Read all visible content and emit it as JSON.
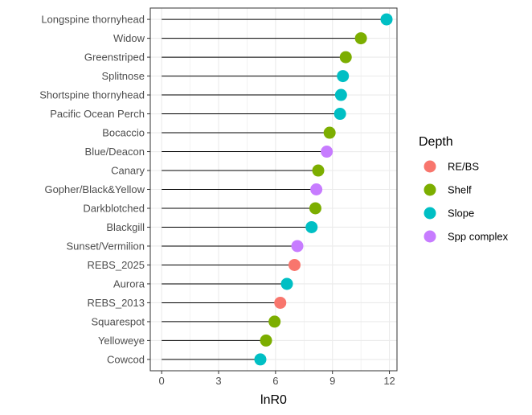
{
  "chart_data": {
    "type": "scatter",
    "subtype": "lollipop",
    "title": "",
    "xlabel": "lnR0",
    "ylabel": "",
    "xlim": [
      -0.6,
      12.4
    ],
    "x_ticks": [
      0,
      3,
      6,
      9,
      12
    ],
    "grid": true,
    "legend": {
      "title": "Depth",
      "position": "right",
      "entries": [
        {
          "name": "RE/BS",
          "color": "#F8766D"
        },
        {
          "name": "Shelf",
          "color": "#7CAE00"
        },
        {
          "name": "Slope",
          "color": "#00BFC4"
        },
        {
          "name": "Spp complex",
          "color": "#C77CFF"
        }
      ]
    },
    "points": [
      {
        "species": "Longspine thornyhead",
        "value": 11.85,
        "depth": "Slope"
      },
      {
        "species": "Widow",
        "value": 10.5,
        "depth": "Shelf"
      },
      {
        "species": "Greenstriped",
        "value": 9.7,
        "depth": "Shelf"
      },
      {
        "species": "Splitnose",
        "value": 9.55,
        "depth": "Slope"
      },
      {
        "species": "Shortspine thornyhead",
        "value": 9.45,
        "depth": "Slope"
      },
      {
        "species": "Pacific Ocean Perch",
        "value": 9.4,
        "depth": "Slope"
      },
      {
        "species": "Bocaccio",
        "value": 8.85,
        "depth": "Shelf"
      },
      {
        "species": "Blue/Deacon",
        "value": 8.7,
        "depth": "Spp complex"
      },
      {
        "species": "Canary",
        "value": 8.25,
        "depth": "Shelf"
      },
      {
        "species": "Gopher/Black&Yellow",
        "value": 8.15,
        "depth": "Spp complex"
      },
      {
        "species": "Darkblotched",
        "value": 8.1,
        "depth": "Shelf"
      },
      {
        "species": "Blackgill",
        "value": 7.9,
        "depth": "Slope"
      },
      {
        "species": "Sunset/Vermilion",
        "value": 7.15,
        "depth": "Spp complex"
      },
      {
        "species": "REBS_2025",
        "value": 7.0,
        "depth": "RE/BS"
      },
      {
        "species": "Aurora",
        "value": 6.6,
        "depth": "Slope"
      },
      {
        "species": "REBS_2013",
        "value": 6.25,
        "depth": "RE/BS"
      },
      {
        "species": "Squarespot",
        "value": 5.95,
        "depth": "Shelf"
      },
      {
        "species": "Yelloweye",
        "value": 5.5,
        "depth": "Shelf"
      },
      {
        "species": "Cowcod",
        "value": 5.2,
        "depth": "Slope"
      }
    ]
  }
}
